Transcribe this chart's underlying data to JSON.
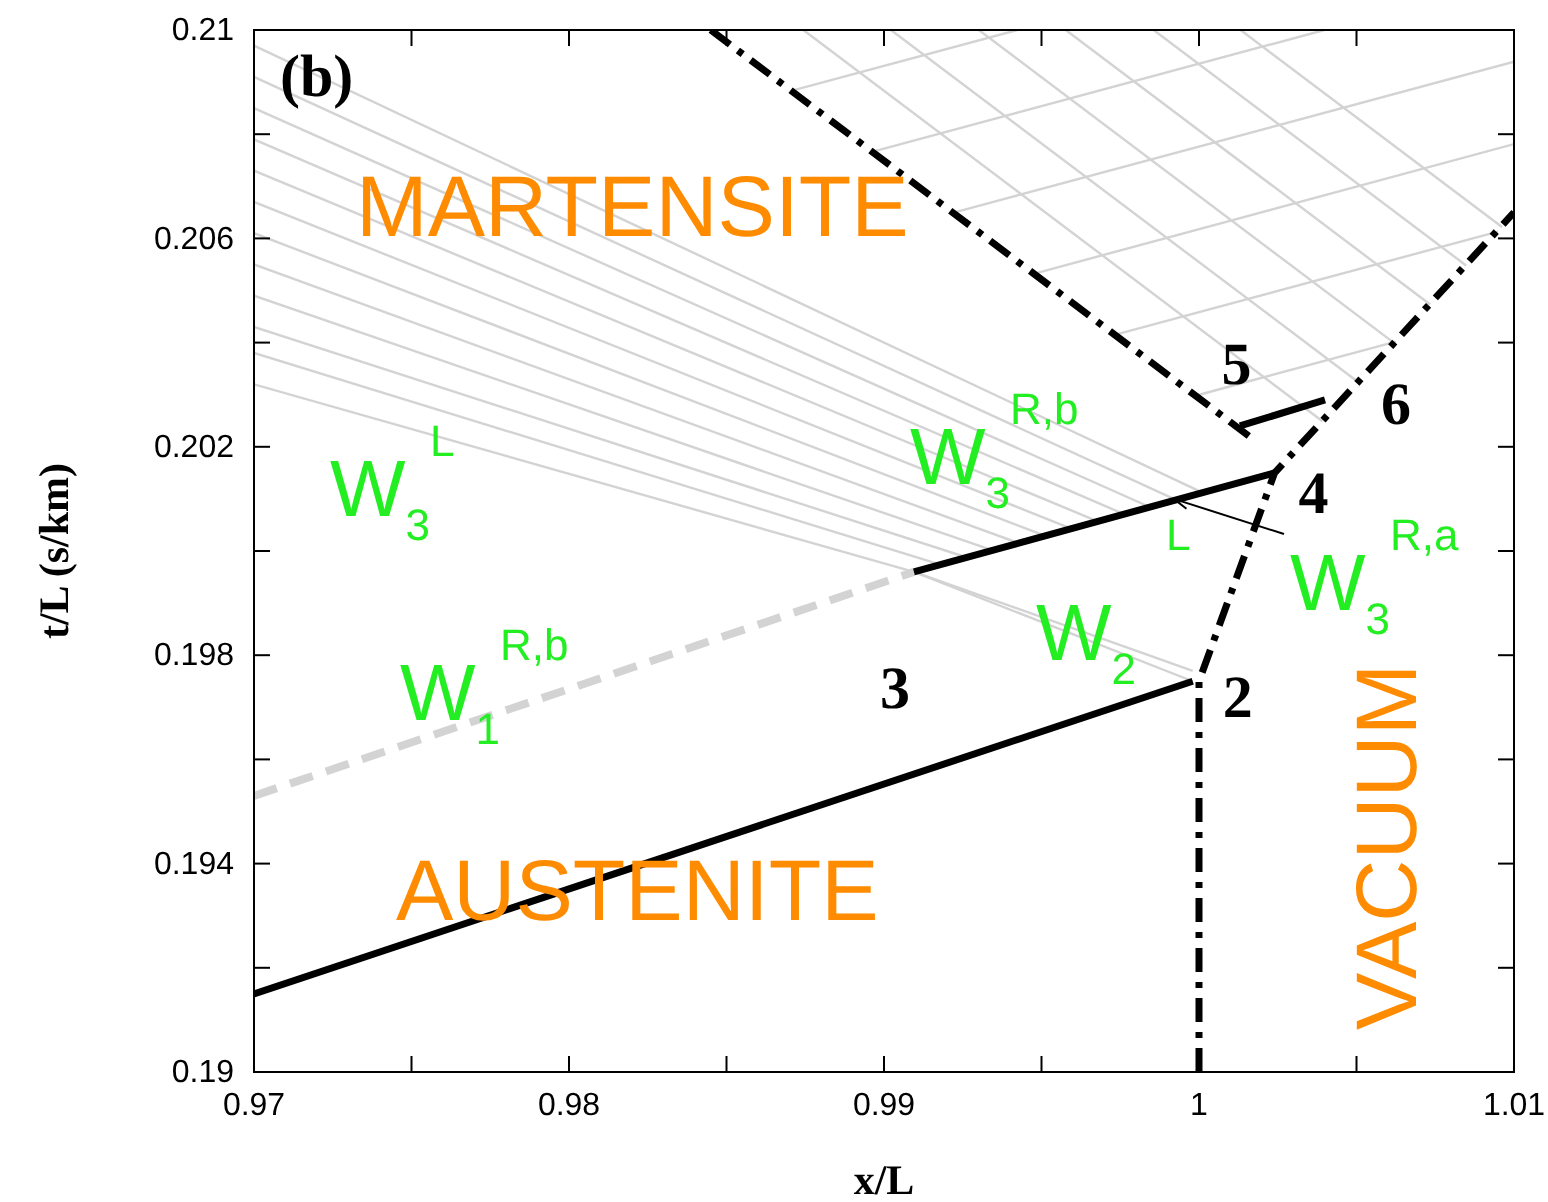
{
  "chart_data": {
    "type": "line",
    "xlabel": "x/L",
    "ylabel": "t/L (s/km)",
    "xlim": [
      0.97,
      1.01
    ],
    "ylim": [
      0.19,
      0.21
    ],
    "xticks": [
      0.97,
      {
        "value": 0.975,
        "label": null
      },
      0.98,
      {
        "value": 0.985,
        "label": null
      },
      0.99,
      {
        "value": 0.995,
        "label": null
      },
      {
        "value": 1.0,
        "label": "1"
      },
      {
        "value": 1.005,
        "label": null
      },
      1.01
    ],
    "yticks": [
      0.19,
      {
        "value": 0.192,
        "label": null
      },
      0.194,
      {
        "value": 0.196,
        "label": null
      },
      0.198,
      {
        "value": 0.2,
        "label": null
      },
      0.202,
      {
        "value": 0.204,
        "label": null
      },
      0.206,
      {
        "value": 0.208,
        "label": null
      },
      0.21
    ],
    "grid": false,
    "marker": "none",
    "series": [
      {
        "color": "#d3d3d3",
        "line_style": "solid",
        "x": [
          0.97,
          1.00011
        ],
        "values": [
          0.2097,
          0.20112
        ]
      },
      {
        "color": "#d3d3d3",
        "line_style": "solid",
        "x": [
          0.97,
          0.99927
        ],
        "values": [
          0.2091,
          0.20098
        ]
      },
      {
        "color": "#d3d3d3",
        "line_style": "solid",
        "x": [
          0.97,
          0.99845
        ],
        "values": [
          0.2085,
          0.20084
        ]
      },
      {
        "color": "#d3d3d3",
        "line_style": "solid",
        "x": [
          0.97,
          0.99761
        ],
        "values": [
          0.2079,
          0.20071
        ]
      },
      {
        "color": "#d3d3d3",
        "line_style": "solid",
        "x": [
          0.97,
          0.99678
        ],
        "values": [
          0.2073,
          0.20057
        ]
      },
      {
        "color": "#d3d3d3",
        "line_style": "solid",
        "x": [
          0.97,
          0.99594
        ],
        "values": [
          0.2067,
          0.20043
        ]
      },
      {
        "color": "#d3d3d3",
        "line_style": "solid",
        "x": [
          0.97,
          0.99512
        ],
        "values": [
          0.2061,
          0.20029
        ]
      },
      {
        "color": "#d3d3d3",
        "line_style": "solid",
        "x": [
          0.97,
          0.99428
        ],
        "values": [
          0.2055,
          0.20015
        ]
      },
      {
        "color": "#d3d3d3",
        "line_style": "solid",
        "x": [
          0.97,
          0.99345
        ],
        "values": [
          0.2049,
          0.20001
        ]
      },
      {
        "color": "#d3d3d3",
        "line_style": "solid",
        "x": [
          0.97,
          0.99261
        ],
        "values": [
          0.2043,
          0.19988
        ]
      },
      {
        "color": "#d3d3d3",
        "line_style": "solid",
        "x": [
          0.97,
          0.99179
        ],
        "values": [
          0.2038,
          0.19974
        ]
      },
      {
        "color": "#d3d3d3",
        "line_style": "solid",
        "x": [
          0.97,
          0.99095,
          0.9998
        ],
        "values": [
          0.2032,
          0.1996,
          0.1975
        ]
      },
      {
        "color": "#d3d3d3",
        "line_style": "solid",
        "x": [
          0.99095,
          0.9998
        ],
        "values": [
          0.1996,
          0.1977
        ]
      },
      {
        "color": "#d3d3d3",
        "line_style": "solid",
        "x": [
          0.99989,
          1.00625
        ],
        "values": [
          0.20298,
          0.20402
        ]
      },
      {
        "color": "#d3d3d3",
        "line_style": "solid",
        "x": [
          0.99732,
          1.00949
        ],
        "values": [
          0.20415,
          0.20613
        ]
      },
      {
        "color": "#d3d3d3",
        "line_style": "solid",
        "x": [
          0.99475,
          1.01
        ],
        "values": [
          0.20532,
          0.20781
        ]
      },
      {
        "color": "#d3d3d3",
        "line_style": "solid",
        "x": [
          0.99218,
          1.01
        ],
        "values": [
          0.20649,
          0.20939
        ]
      },
      {
        "color": "#d3d3d3",
        "line_style": "solid",
        "x": [
          0.98962,
          1.00398
        ],
        "values": [
          0.20766,
          0.21
        ]
      },
      {
        "color": "#d3d3d3",
        "line_style": "solid",
        "x": [
          0.98705,
          0.99423
        ],
        "values": [
          0.20883,
          0.21
        ]
      },
      {
        "color": "#d3d3d3",
        "line_style": "solid",
        "x": [
          1.00392,
          0.98744
        ],
        "values": [
          0.20249,
          0.21
        ]
      },
      {
        "color": "#d3d3d3",
        "line_style": "solid",
        "x": [
          1.00506,
          0.99022
        ],
        "values": [
          0.20324,
          0.21
        ]
      },
      {
        "color": "#d3d3d3",
        "line_style": "solid",
        "x": [
          1.0062,
          0.99301
        ],
        "values": [
          0.20399,
          0.21
        ]
      },
      {
        "color": "#d3d3d3",
        "line_style": "solid",
        "x": [
          1.00734,
          0.99577
        ],
        "values": [
          0.20473,
          0.21
        ]
      },
      {
        "color": "#d3d3d3",
        "line_style": "solid",
        "x": [
          1.00848,
          0.99856
        ],
        "values": [
          0.20548,
          0.21
        ]
      },
      {
        "color": "#d3d3d3",
        "line_style": "solid",
        "x": [
          1.00962,
          1.00132
        ],
        "values": [
          0.20622,
          0.21
        ]
      },
      {
        "color": "#d3d3d3",
        "line_style": "dashed",
        "x": [
          0.97,
          0.99095
        ],
        "values": [
          0.1953,
          0.1996
        ]
      },
      {
        "color": "#000000",
        "line_style": "solid",
        "x": [
          0.97,
          0.9998
        ],
        "values": [
          0.1915,
          0.1975
        ]
      },
      {
        "color": "#000000",
        "line_style": "solid",
        "x": [
          0.99095,
          1.0024
        ],
        "values": [
          0.1996,
          0.2015
        ]
      },
      {
        "color": "#000000",
        "line_style": "dashed",
        "x": [
          1.0,
          1.0,
          1.0024,
          1.01
        ],
        "values": [
          0.19,
          0.1975,
          0.2015,
          0.2065
        ]
      },
      {
        "color": "#000000",
        "line_style": "dashed",
        "x": [
          0.9845,
          1.0016
        ],
        "values": [
          0.21,
          0.2022
        ]
      },
      {
        "color": "#000000",
        "line_style": "solid",
        "x": [
          1.0013,
          1.004
        ],
        "values": [
          0.2024,
          0.2029
        ]
      }
    ],
    "annotations": [
      "(b)",
      "MARTENSITE",
      "AUSTENITE",
      "VACUUM",
      "W$_{3}$$^{L}$",
      "W$_{1}$$^{R,b}$",
      "W$_{3}$$^{R,b}$",
      "W$_{2}$",
      "L",
      {
        "text": "W$_{3}$$^{R,a}$",
        "x": 0.9992,
        "y": 0.201
      },
      {
        "text": "2",
        "x": 0.9998,
        "y": 0.1975
      },
      {
        "text": "3",
        "x": 0.99095,
        "y": 0.1996
      },
      {
        "text": "4",
        "x": 1.0024,
        "y": 0.2015
      },
      {
        "text": "5",
        "x": 1.0016,
        "y": 0.2022
      },
      {
        "text": "6",
        "x": 1.004,
        "y": 0.2029
      }
    ]
  }
}
